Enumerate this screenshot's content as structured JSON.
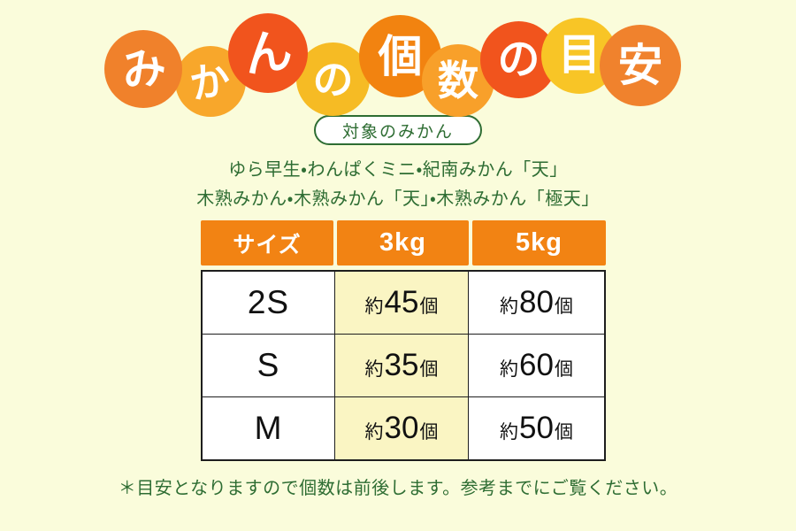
{
  "title": {
    "full_text": "みかんの個数の目安",
    "circles": [
      {
        "char": "み",
        "color": "#F0812B"
      },
      {
        "char": "か",
        "color": "#F8A72B"
      },
      {
        "char": "ん",
        "color": "#F1541D"
      },
      {
        "char": "の",
        "color": "#F6BB24"
      },
      {
        "char": "個",
        "color": "#F28310"
      },
      {
        "char": "数",
        "color": "#F8A02A"
      },
      {
        "char": "の",
        "color": "#F1541D"
      },
      {
        "char": "目",
        "color": "#F8C526"
      },
      {
        "char": "安",
        "color": "#F0822D"
      }
    ]
  },
  "badge": {
    "label": "対象のみかん"
  },
  "target": {
    "line1": "ゆら早生・わんぱくミニ・紀南みかん「天」",
    "line2": "木熟みかん・木熟みかん「天」・木熟みかん「極天」"
  },
  "table": {
    "headers": [
      "サイズ",
      "3kg",
      "5kg"
    ],
    "approx_prefix": "約",
    "unit_suffix": "個",
    "rows": [
      {
        "size": "2S",
        "kg3": "45",
        "kg5": "80"
      },
      {
        "size": "S",
        "kg3": "35",
        "kg5": "60"
      },
      {
        "size": "M",
        "kg3": "30",
        "kg5": "50"
      }
    ]
  },
  "footnote": "＊目安となりますので個数は前後します。参考までにご覧ください。",
  "colors": {
    "page_bg": "#FAFCDB",
    "header_bg": "#F28313",
    "header_text": "#FFFFFF",
    "cell_highlight_bg": "#FAF5C3",
    "cell_bg": "#FFFFFF",
    "border": "#1E1E1E",
    "green_text": "#2E6D33",
    "badge_border": "#2E6D33",
    "badge_bg": "#FFFFFF"
  }
}
